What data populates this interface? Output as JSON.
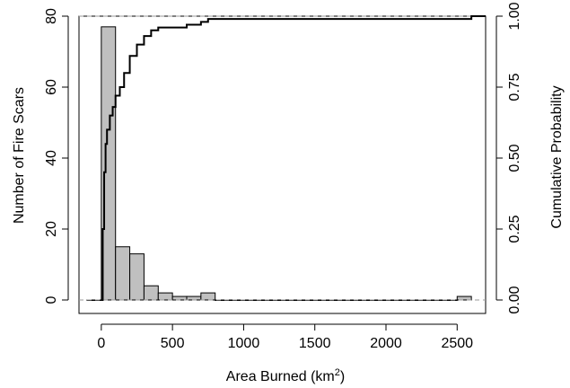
{
  "chart_data": {
    "type": "bar",
    "subtype": "histogram with cumulative probability line",
    "xlabel": "Area Burned (km",
    "xlabel_superscript": "2",
    "xlabel_suffix": ")",
    "ylabel_left": "Number of Fire Scars",
    "ylabel_right": "Cumulative Probability",
    "xlim": [
      -100,
      2700
    ],
    "ylim_left": [
      0,
      80
    ],
    "ylim_right": [
      0,
      1
    ],
    "x_ticks": [
      "0",
      "500",
      "1000",
      "1500",
      "2000",
      "2500"
    ],
    "x_tick_values": [
      0,
      500,
      1000,
      1500,
      2000,
      2500
    ],
    "y_left_ticks": [
      "0",
      "20",
      "40",
      "60",
      "80"
    ],
    "y_left_tick_values": [
      0,
      20,
      40,
      60,
      80
    ],
    "y_right_ticks": [
      "0.00",
      "0.25",
      "0.50",
      "0.75",
      "1.00"
    ],
    "y_right_tick_values": [
      0,
      0.25,
      0.5,
      0.75,
      1
    ],
    "bin_width": 100,
    "histogram": {
      "bin_starts": [
        -100,
        0,
        100,
        200,
        300,
        400,
        500,
        600,
        700,
        800,
        900,
        1000,
        1100,
        1200,
        1300,
        1400,
        1500,
        1600,
        1700,
        1800,
        1900,
        2000,
        2100,
        2200,
        2300,
        2400,
        2500
      ],
      "counts": [
        0,
        77,
        15,
        13,
        4,
        2,
        1,
        1,
        2,
        0,
        0,
        0,
        0,
        0,
        0,
        0,
        0,
        0,
        0,
        0,
        0,
        0,
        0,
        0,
        0,
        0,
        1
      ],
      "fill": "#c0c0c0",
      "stroke": "#000000"
    },
    "cumulative": {
      "x": [
        0,
        10,
        20,
        30,
        40,
        60,
        80,
        100,
        130,
        160,
        200,
        250,
        300,
        350,
        400,
        450,
        500,
        600,
        700,
        750,
        800,
        1000,
        1500,
        2000,
        2500,
        2550,
        2600,
        2700
      ],
      "y": [
        0.0,
        0.25,
        0.45,
        0.55,
        0.6,
        0.65,
        0.68,
        0.72,
        0.75,
        0.8,
        0.86,
        0.9,
        0.93,
        0.95,
        0.96,
        0.96,
        0.96,
        0.97,
        0.98,
        0.99,
        0.99,
        0.99,
        0.99,
        0.99,
        0.99,
        0.99,
        1.0,
        1.0
      ],
      "color": "#000000"
    },
    "reference_lines": [
      0,
      1
    ],
    "reference_line_color": "#999999"
  }
}
